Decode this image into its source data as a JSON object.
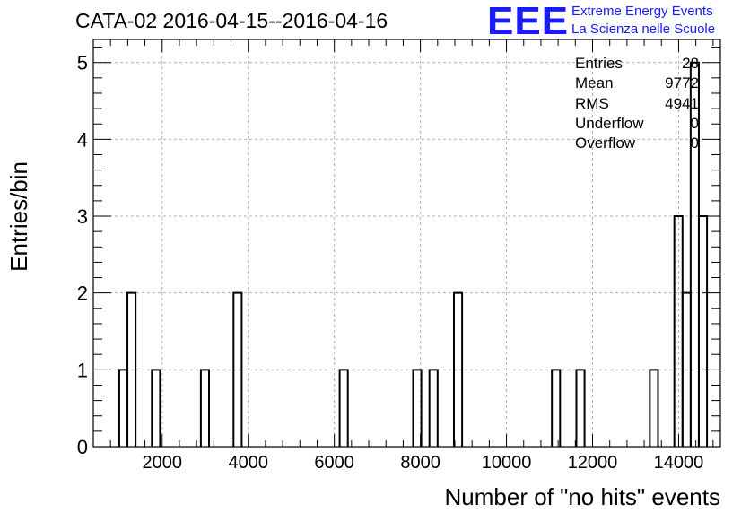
{
  "header": {
    "title": "CATA-02 2016-04-15--2016-04-16",
    "logo_mark": "EEE",
    "logo_line1": "Extreme Energy Events",
    "logo_line2": "La Scienza nelle Scuole",
    "logo_color": "#1a1aff"
  },
  "stats": [
    {
      "label": "Entries",
      "value": "28"
    },
    {
      "label": "Mean",
      "value": "9772"
    },
    {
      "label": "RMS",
      "value": "4941"
    },
    {
      "label": "Underflow",
      "value": "0"
    },
    {
      "label": "Overflow",
      "value": "0"
    }
  ],
  "chart_data": {
    "type": "bar",
    "style": "step-histogram",
    "title": "CATA-02 2016-04-15--2016-04-16",
    "xlabel": "Number of \"no hits\" events",
    "ylabel": "Entries/bin",
    "xlim": [
      400,
      14970
    ],
    "ylim": [
      0,
      5.3
    ],
    "grid": true,
    "bin_width": 190,
    "xticks": [
      2000,
      4000,
      6000,
      8000,
      10000,
      12000,
      14000
    ],
    "yticks": [
      0,
      1,
      2,
      3,
      4,
      5
    ],
    "bins": [
      {
        "x": 1003,
        "count": 1
      },
      {
        "x": 1193,
        "count": 2
      },
      {
        "x": 1761,
        "count": 1
      },
      {
        "x": 2899,
        "count": 1
      },
      {
        "x": 3658,
        "count": 2
      },
      {
        "x": 6124,
        "count": 1
      },
      {
        "x": 7831,
        "count": 1
      },
      {
        "x": 8210,
        "count": 1
      },
      {
        "x": 8779,
        "count": 2
      },
      {
        "x": 11055,
        "count": 1
      },
      {
        "x": 11624,
        "count": 1
      },
      {
        "x": 13331,
        "count": 1
      },
      {
        "x": 13900,
        "count": 3
      },
      {
        "x": 14090,
        "count": 2
      },
      {
        "x": 14279,
        "count": 5
      },
      {
        "x": 14469,
        "count": 3
      }
    ]
  }
}
